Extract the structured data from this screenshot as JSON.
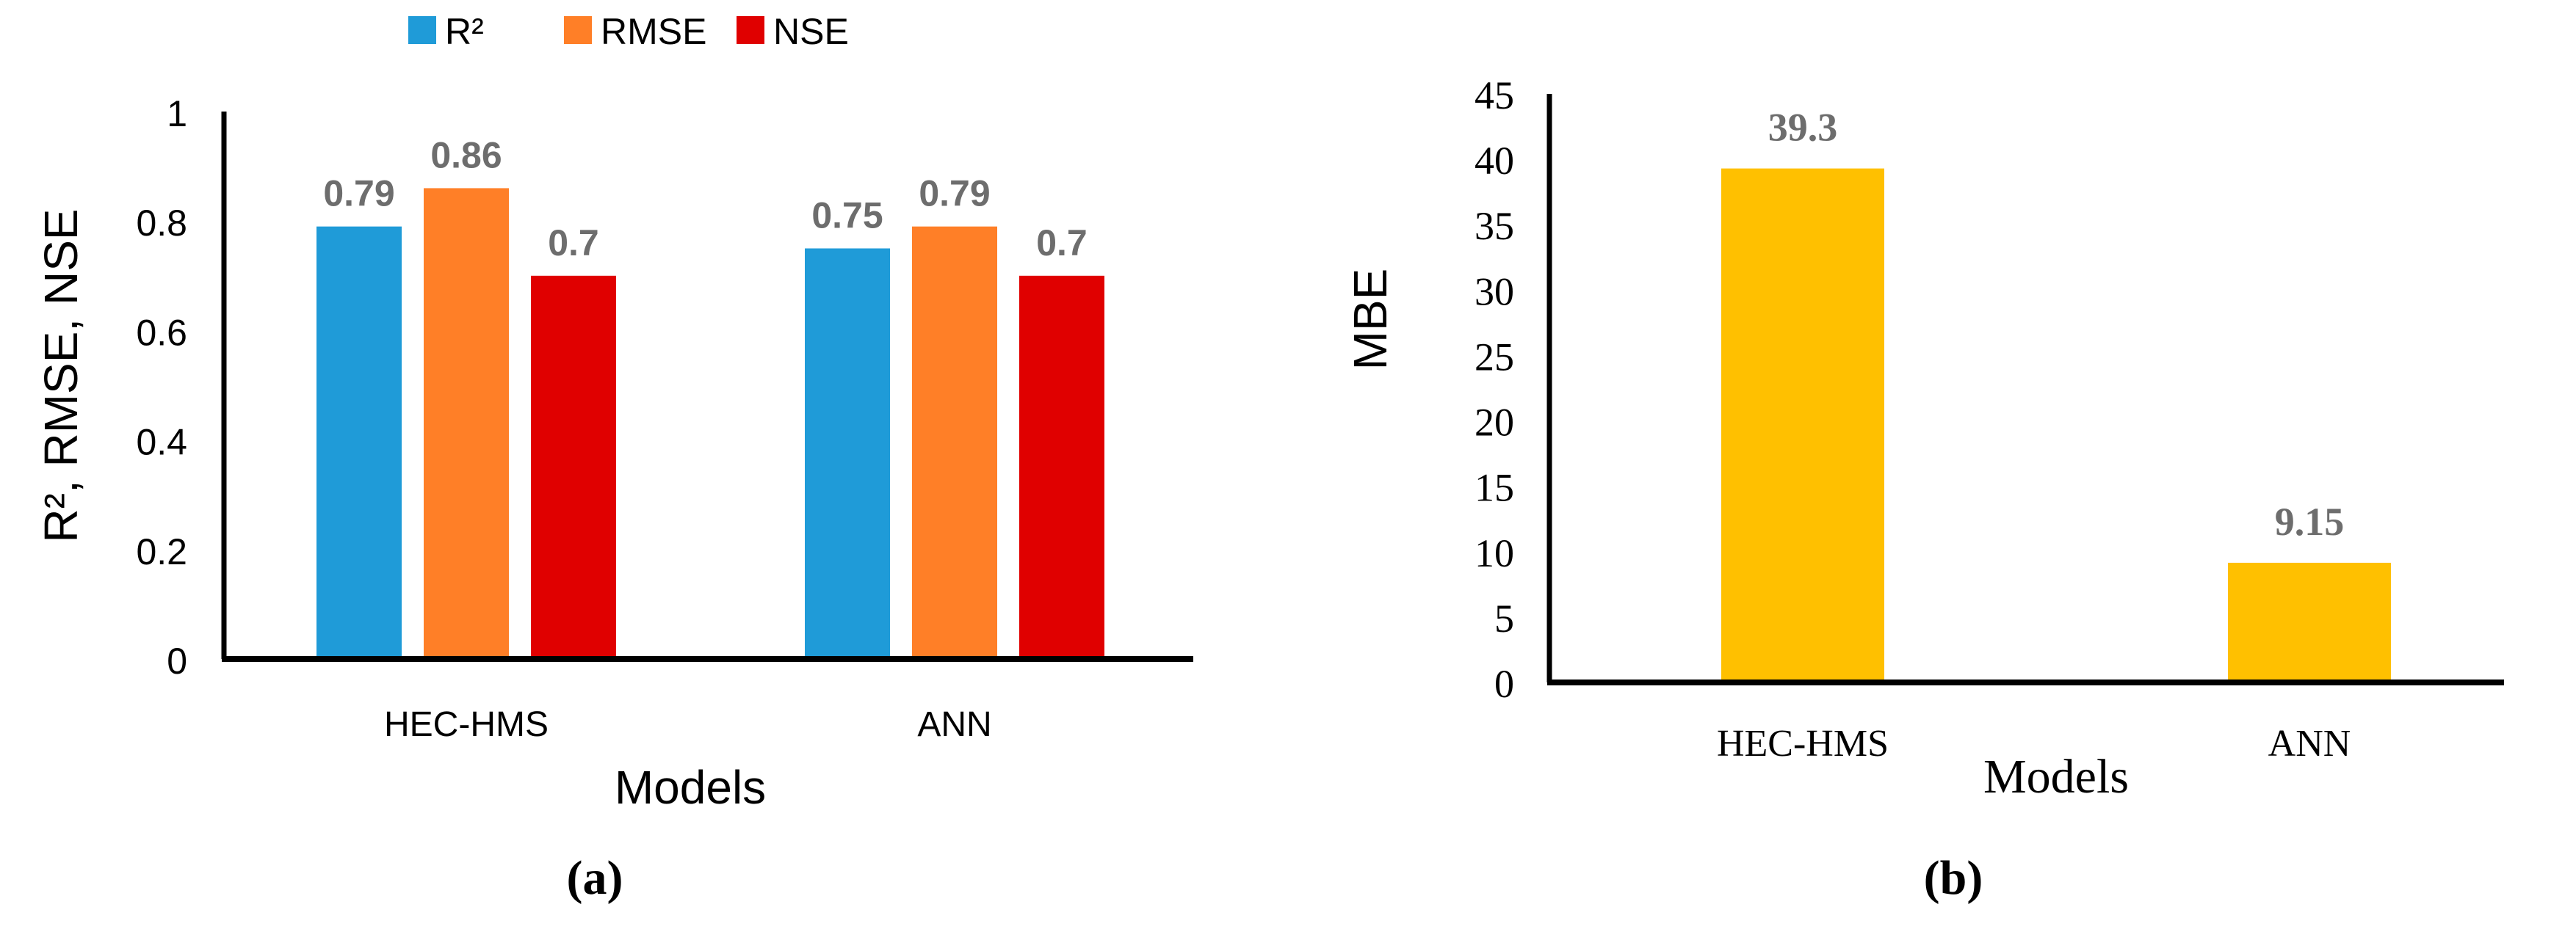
{
  "chart_data": [
    {
      "type": "bar",
      "panel_label": "(a)",
      "categories": [
        "HEC-HMS",
        "ANN"
      ],
      "series": [
        {
          "name": "R²",
          "values": [
            0.79,
            0.75
          ],
          "color": "#1f9bd8"
        },
        {
          "name": "RMSE",
          "values": [
            0.86,
            0.79
          ],
          "color": "#ff7f27"
        },
        {
          "name": "NSE",
          "values": [
            0.7,
            0.7
          ],
          "color": "#e00000"
        }
      ],
      "data_labels": [
        [
          "0.79",
          "0.75"
        ],
        [
          "0.86",
          "0.79"
        ],
        [
          "0.7",
          "0.7"
        ]
      ],
      "xlabel": "Models",
      "ylabel": "R², RMSE, NSE",
      "ylim": [
        0,
        1
      ],
      "yticks": [
        "0",
        "0.2",
        "0.4",
        "0.6",
        "0.8",
        "1"
      ],
      "grid": false,
      "legend": "top-center"
    },
    {
      "type": "bar",
      "panel_label": "(b)",
      "categories": [
        "HEC-HMS",
        "ANN"
      ],
      "values": [
        39.3,
        9.15
      ],
      "data_labels": [
        "39.3",
        "9.15"
      ],
      "color": "#ffc000",
      "xlabel": "Models",
      "ylabel": "MBE",
      "ylim": [
        0,
        45
      ],
      "yticks": [
        "0",
        "5",
        "10",
        "15",
        "20",
        "25",
        "30",
        "35",
        "40",
        "45"
      ],
      "grid": false,
      "legend": "none"
    }
  ],
  "colors": {
    "axis": "#000000",
    "data_label": "#6d6d6d"
  }
}
